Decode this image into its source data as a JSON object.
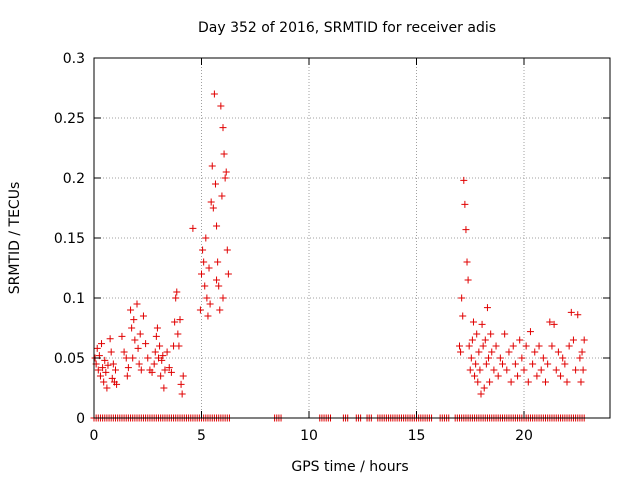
{
  "chart_data": {
    "type": "scatter",
    "title": "Day 352 of 2016, SRMTID for receiver adis",
    "xlabel": "GPS time / hours",
    "ylabel": "SRMTID / TECUs",
    "xlim": [
      0,
      24
    ],
    "ylim": [
      0,
      0.3
    ],
    "grid": true,
    "marker": "+",
    "marker_color": "#e00000",
    "x_ticks": [
      0,
      5,
      10,
      15,
      20
    ],
    "y_ticks": [
      0,
      0.05,
      0.1,
      0.15,
      0.2,
      0.25,
      0.3
    ],
    "x_tick_labels": [
      "0",
      "5",
      "10",
      "15",
      "20"
    ],
    "y_tick_labels": [
      "0",
      "0.05",
      "0.1",
      "0.15",
      "0.2",
      "0.25",
      "0.3"
    ],
    "series": [
      {
        "name": "SRMTID",
        "points": [
          [
            0.05,
            0.05
          ],
          [
            0.1,
            0.045
          ],
          [
            0.15,
            0.058
          ],
          [
            0.2,
            0.04
          ],
          [
            0.25,
            0.052
          ],
          [
            0.3,
            0.035
          ],
          [
            0.35,
            0.062
          ],
          [
            0.4,
            0.042
          ],
          [
            0.45,
            0.03
          ],
          [
            0.5,
            0.048
          ],
          [
            0.55,
            0.038
          ],
          [
            0.6,
            0.025
          ],
          [
            0.65,
            0.044
          ],
          [
            0.75,
            0.066
          ],
          [
            0.8,
            0.055
          ],
          [
            0.85,
            0.033
          ],
          [
            0.9,
            0.045
          ],
          [
            0.95,
            0.03
          ],
          [
            1.0,
            0.04
          ],
          [
            1.05,
            0.028
          ],
          [
            1.3,
            0.068
          ],
          [
            1.4,
            0.055
          ],
          [
            1.5,
            0.05
          ],
          [
            1.55,
            0.035
          ],
          [
            1.6,
            0.042
          ],
          [
            1.7,
            0.09
          ],
          [
            1.75,
            0.075
          ],
          [
            1.8,
            0.05
          ],
          [
            1.85,
            0.082
          ],
          [
            1.9,
            0.065
          ],
          [
            2.0,
            0.095
          ],
          [
            2.05,
            0.058
          ],
          [
            2.1,
            0.045
          ],
          [
            2.15,
            0.07
          ],
          [
            2.2,
            0.04
          ],
          [
            2.3,
            0.085
          ],
          [
            2.4,
            0.062
          ],
          [
            2.5,
            0.05
          ],
          [
            2.6,
            0.04
          ],
          [
            2.7,
            0.038
          ],
          [
            2.8,
            0.045
          ],
          [
            2.85,
            0.055
          ],
          [
            2.9,
            0.068
          ],
          [
            2.95,
            0.075
          ],
          [
            3.0,
            0.05
          ],
          [
            3.05,
            0.06
          ],
          [
            3.1,
            0.035
          ],
          [
            3.15,
            0.048
          ],
          [
            3.2,
            0.052
          ],
          [
            3.25,
            0.025
          ],
          [
            3.3,
            0.04
          ],
          [
            3.4,
            0.055
          ],
          [
            3.5,
            0.042
          ],
          [
            3.6,
            0.038
          ],
          [
            3.7,
            0.06
          ],
          [
            3.75,
            0.08
          ],
          [
            3.8,
            0.1
          ],
          [
            3.85,
            0.105
          ],
          [
            3.9,
            0.07
          ],
          [
            3.95,
            0.06
          ],
          [
            4.0,
            0.082
          ],
          [
            4.05,
            0.028
          ],
          [
            4.1,
            0.02
          ],
          [
            4.15,
            0.035
          ],
          [
            4.6,
            0.158
          ],
          [
            4.95,
            0.09
          ],
          [
            5.0,
            0.12
          ],
          [
            5.05,
            0.14
          ],
          [
            5.1,
            0.13
          ],
          [
            5.15,
            0.11
          ],
          [
            5.2,
            0.15
          ],
          [
            5.25,
            0.1
          ],
          [
            5.3,
            0.085
          ],
          [
            5.35,
            0.125
          ],
          [
            5.4,
            0.095
          ],
          [
            5.45,
            0.18
          ],
          [
            5.5,
            0.21
          ],
          [
            5.55,
            0.175
          ],
          [
            5.6,
            0.27
          ],
          [
            5.65,
            0.195
          ],
          [
            5.7,
            0.16
          ],
          [
            5.75,
            0.13
          ],
          [
            5.8,
            0.11
          ],
          [
            5.85,
            0.09
          ],
          [
            5.9,
            0.26
          ],
          [
            5.95,
            0.185
          ],
          [
            6.0,
            0.242
          ],
          [
            6.05,
            0.22
          ],
          [
            6.1,
            0.2
          ],
          [
            6.15,
            0.205
          ],
          [
            6.2,
            0.14
          ],
          [
            6.25,
            0.12
          ],
          [
            6.0,
            0.1
          ],
          [
            5.7,
            0.115
          ],
          [
            17.0,
            0.06
          ],
          [
            17.05,
            0.055
          ],
          [
            17.1,
            0.1
          ],
          [
            17.15,
            0.085
          ],
          [
            17.2,
            0.198
          ],
          [
            17.25,
            0.178
          ],
          [
            17.3,
            0.157
          ],
          [
            17.35,
            0.13
          ],
          [
            17.4,
            0.115
          ],
          [
            17.45,
            0.06
          ],
          [
            17.5,
            0.04
          ],
          [
            17.55,
            0.05
          ],
          [
            17.6,
            0.065
          ],
          [
            17.65,
            0.08
          ],
          [
            17.7,
            0.035
          ],
          [
            17.75,
            0.045
          ],
          [
            17.8,
            0.07
          ],
          [
            17.85,
            0.03
          ],
          [
            17.9,
            0.055
          ],
          [
            17.95,
            0.04
          ],
          [
            18.0,
            0.02
          ],
          [
            18.05,
            0.078
          ],
          [
            18.1,
            0.06
          ],
          [
            18.15,
            0.025
          ],
          [
            18.2,
            0.065
          ],
          [
            18.25,
            0.045
          ],
          [
            18.3,
            0.092
          ],
          [
            18.35,
            0.05
          ],
          [
            18.4,
            0.03
          ],
          [
            18.45,
            0.07
          ],
          [
            18.5,
            0.055
          ],
          [
            18.6,
            0.04
          ],
          [
            18.7,
            0.06
          ],
          [
            18.8,
            0.035
          ],
          [
            18.9,
            0.05
          ],
          [
            19.0,
            0.045
          ],
          [
            19.1,
            0.07
          ],
          [
            19.2,
            0.04
          ],
          [
            19.3,
            0.055
          ],
          [
            19.4,
            0.03
          ],
          [
            19.5,
            0.06
          ],
          [
            19.6,
            0.045
          ],
          [
            19.7,
            0.035
          ],
          [
            19.8,
            0.065
          ],
          [
            19.9,
            0.05
          ],
          [
            20.0,
            0.04
          ],
          [
            20.1,
            0.06
          ],
          [
            20.2,
            0.03
          ],
          [
            20.3,
            0.072
          ],
          [
            20.4,
            0.045
          ],
          [
            20.5,
            0.055
          ],
          [
            20.6,
            0.035
          ],
          [
            20.7,
            0.06
          ],
          [
            20.8,
            0.04
          ],
          [
            20.9,
            0.05
          ],
          [
            21.0,
            0.03
          ],
          [
            21.1,
            0.045
          ],
          [
            21.2,
            0.08
          ],
          [
            21.3,
            0.06
          ],
          [
            21.4,
            0.078
          ],
          [
            21.5,
            0.04
          ],
          [
            21.6,
            0.055
          ],
          [
            21.7,
            0.035
          ],
          [
            21.8,
            0.05
          ],
          [
            21.9,
            0.045
          ],
          [
            22.0,
            0.03
          ],
          [
            22.1,
            0.06
          ],
          [
            22.2,
            0.088
          ],
          [
            22.3,
            0.065
          ],
          [
            22.4,
            0.04
          ],
          [
            22.5,
            0.086
          ],
          [
            22.6,
            0.05
          ],
          [
            22.65,
            0.03
          ],
          [
            22.7,
            0.055
          ],
          [
            22.75,
            0.04
          ],
          [
            22.8,
            0.065
          ]
        ],
        "zero_ranges": [
          [
            0,
            6.3
          ],
          [
            8.4,
            8.7
          ],
          [
            10.5,
            11.0
          ],
          [
            11.6,
            11.8
          ],
          [
            12.2,
            12.4
          ],
          [
            12.7,
            12.9
          ],
          [
            13.2,
            15.7
          ],
          [
            16.1,
            16.5
          ],
          [
            16.8,
            22.8
          ]
        ]
      }
    ]
  }
}
